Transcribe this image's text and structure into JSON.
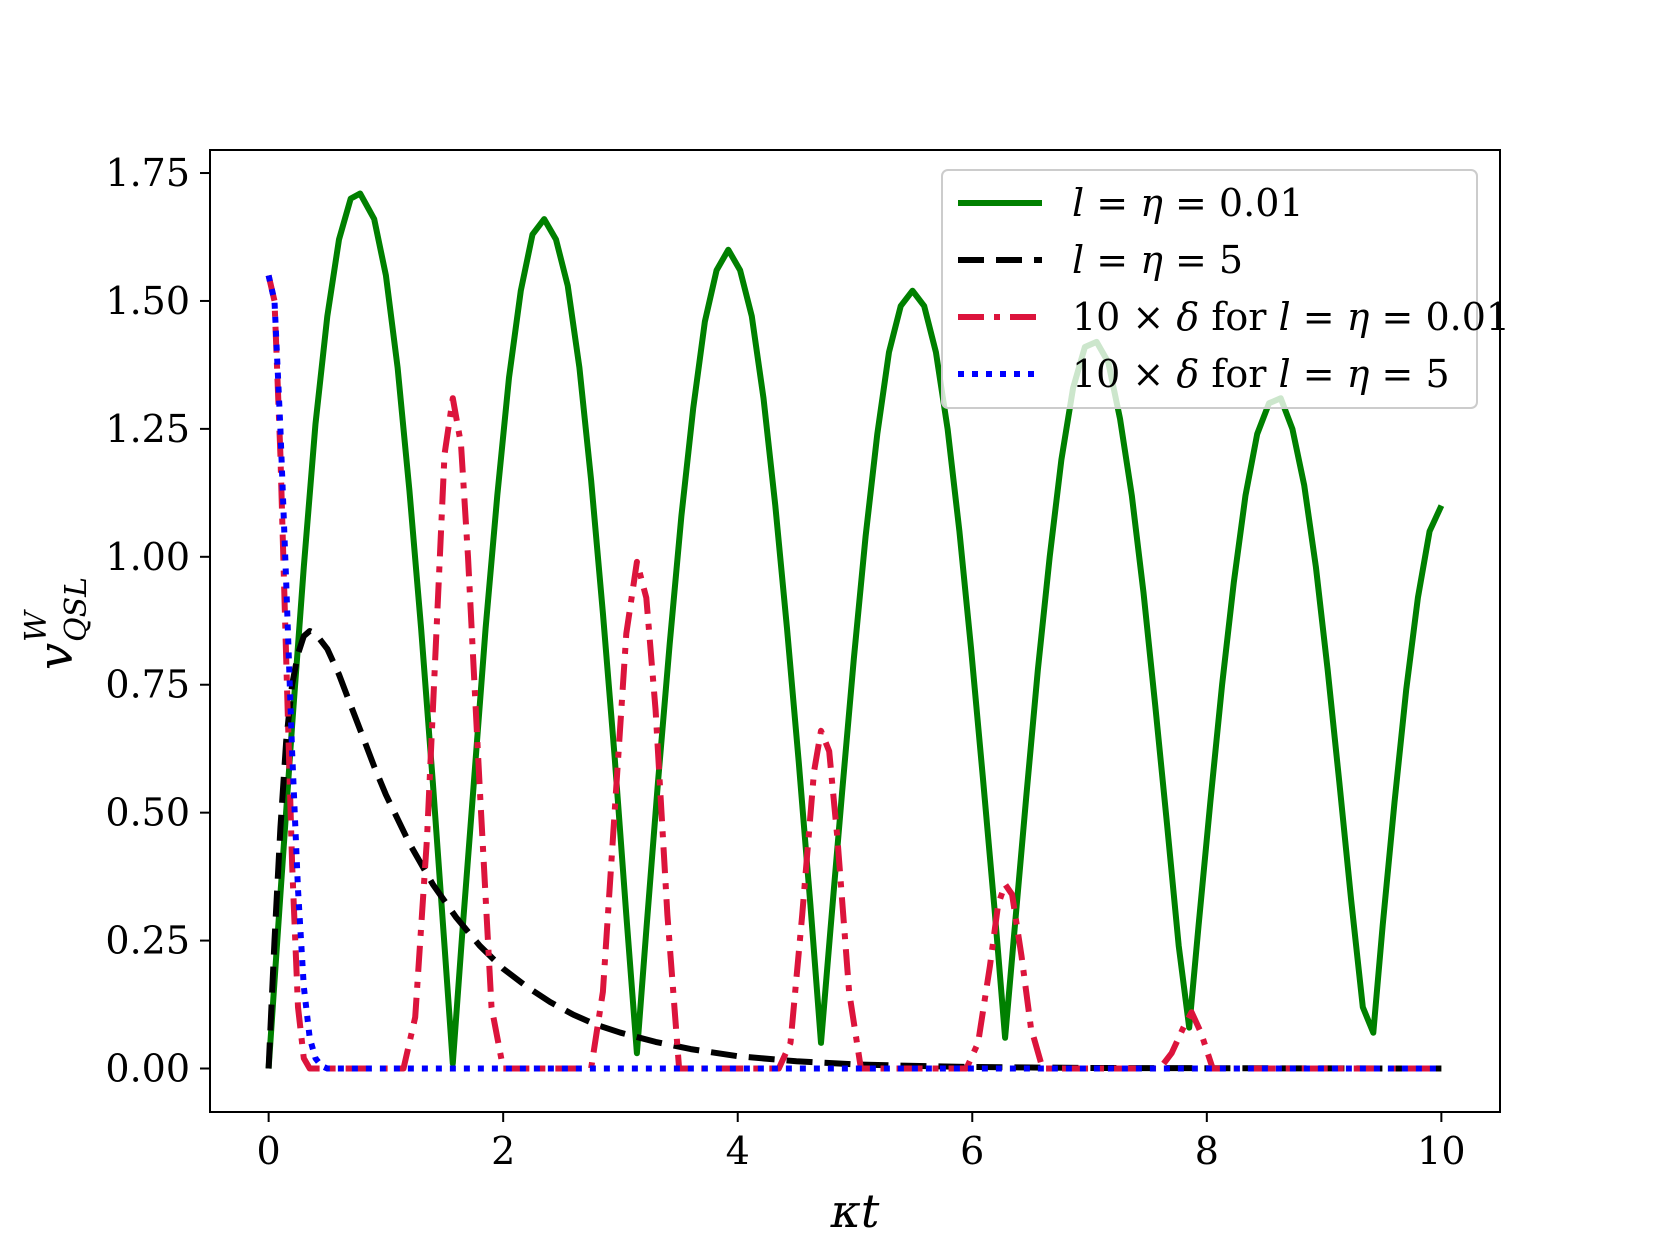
{
  "chart_data": {
    "type": "line",
    "title": "",
    "xlabel": "κt",
    "ylabel": {
      "base": "v",
      "sup": "W",
      "sub": "QSL"
    },
    "xlim": [
      -0.5,
      10.5
    ],
    "ylim": [
      -0.085,
      1.795
    ],
    "xticks": [
      0,
      2,
      4,
      6,
      8,
      10
    ],
    "xtick_labels": [
      "0",
      "2",
      "4",
      "6",
      "8",
      "10"
    ],
    "yticks": [
      0,
      0.25,
      0.5,
      0.75,
      1.0,
      1.25,
      1.5,
      1.75
    ],
    "ytick_labels": [
      "0.00",
      "0.25",
      "0.50",
      "0.75",
      "1.00",
      "1.25",
      "1.50",
      "1.75"
    ],
    "grid": false,
    "legend_position": "top-right",
    "series": [
      {
        "name": "l = η = 0.01",
        "legend_parts": [
          [
            "l",
            "it"
          ],
          [
            " = ",
            ""
          ],
          [
            "η",
            "it"
          ],
          [
            " = 0.01",
            ""
          ]
        ],
        "color": "#008000",
        "style": "solid",
        "x": [
          0,
          0.1,
          0.2,
          0.3,
          0.4,
          0.5,
          0.6,
          0.7,
          0.78,
          0.9,
          1.0,
          1.1,
          1.2,
          1.3,
          1.4,
          1.5,
          1.57,
          1.65,
          1.75,
          1.85,
          1.95,
          2.05,
          2.15,
          2.25,
          2.35,
          2.45,
          2.55,
          2.65,
          2.75,
          2.85,
          2.95,
          3.05,
          3.14,
          3.22,
          3.32,
          3.42,
          3.52,
          3.62,
          3.72,
          3.82,
          3.92,
          4.02,
          4.12,
          4.22,
          4.32,
          4.42,
          4.52,
          4.62,
          4.71,
          4.79,
          4.89,
          4.99,
          5.09,
          5.19,
          5.29,
          5.39,
          5.49,
          5.59,
          5.69,
          5.79,
          5.89,
          5.99,
          6.09,
          6.19,
          6.28,
          6.36,
          6.46,
          6.56,
          6.66,
          6.76,
          6.86,
          6.96,
          7.06,
          7.16,
          7.26,
          7.36,
          7.46,
          7.56,
          7.66,
          7.76,
          7.85,
          7.93,
          8.03,
          8.13,
          8.23,
          8.33,
          8.43,
          8.53,
          8.63,
          8.73,
          8.83,
          8.93,
          9.03,
          9.13,
          9.23,
          9.33,
          9.42,
          9.5,
          9.6,
          9.7,
          9.8,
          9.9,
          10.0
        ],
        "y": [
          0,
          0.34,
          0.67,
          0.98,
          1.26,
          1.47,
          1.62,
          1.7,
          1.71,
          1.66,
          1.55,
          1.37,
          1.13,
          0.86,
          0.56,
          0.24,
          0.01,
          0.26,
          0.56,
          0.86,
          1.12,
          1.35,
          1.52,
          1.63,
          1.66,
          1.62,
          1.53,
          1.37,
          1.15,
          0.89,
          0.61,
          0.3,
          0.03,
          0.27,
          0.56,
          0.83,
          1.08,
          1.29,
          1.46,
          1.56,
          1.6,
          1.56,
          1.47,
          1.31,
          1.1,
          0.86,
          0.6,
          0.32,
          0.05,
          0.27,
          0.54,
          0.8,
          1.04,
          1.24,
          1.4,
          1.49,
          1.52,
          1.49,
          1.4,
          1.25,
          1.05,
          0.82,
          0.57,
          0.31,
          0.06,
          0.27,
          0.53,
          0.78,
          1.0,
          1.19,
          1.33,
          1.41,
          1.42,
          1.38,
          1.27,
          1.12,
          0.93,
          0.71,
          0.48,
          0.24,
          0.08,
          0.28,
          0.52,
          0.75,
          0.95,
          1.12,
          1.24,
          1.3,
          1.31,
          1.25,
          1.14,
          0.98,
          0.78,
          0.56,
          0.33,
          0.12,
          0.07,
          0.28,
          0.52,
          0.74,
          0.92,
          1.05,
          1.1
        ]
      },
      {
        "name": "l = η = 5",
        "legend_parts": [
          [
            "l",
            "it"
          ],
          [
            " = ",
            ""
          ],
          [
            "η",
            "it"
          ],
          [
            " = 5",
            ""
          ]
        ],
        "color": "#000000",
        "style": "dashed",
        "x": [
          0,
          0.05,
          0.1,
          0.15,
          0.2,
          0.25,
          0.3,
          0.35,
          0.4,
          0.5,
          0.6,
          0.7,
          0.8,
          0.9,
          1.0,
          1.2,
          1.4,
          1.6,
          1.8,
          2.0,
          2.2,
          2.4,
          2.6,
          2.8,
          3.0,
          3.3,
          3.6,
          4.0,
          4.5,
          5.0,
          5.5,
          6.0,
          6.5,
          7.0,
          8.0,
          9.0,
          10.0
        ],
        "y": [
          0,
          0.25,
          0.47,
          0.64,
          0.75,
          0.81,
          0.845,
          0.855,
          0.85,
          0.82,
          0.77,
          0.71,
          0.65,
          0.59,
          0.535,
          0.44,
          0.36,
          0.295,
          0.24,
          0.195,
          0.16,
          0.13,
          0.105,
          0.085,
          0.07,
          0.052,
          0.038,
          0.024,
          0.014,
          0.008,
          0.005,
          0.003,
          0.002,
          0.001,
          0.0005,
          0.0002,
          0
        ]
      },
      {
        "name": "10 × δ for l = η = 0.01",
        "legend_parts": [
          [
            "10 × ",
            ""
          ],
          [
            "δ",
            "it"
          ],
          [
            " for ",
            ""
          ],
          [
            "l",
            "it"
          ],
          [
            " = ",
            ""
          ],
          [
            "η",
            "it"
          ],
          [
            " = 0.01",
            ""
          ]
        ],
        "color": "#dc143c",
        "style": "dashdot",
        "x": [
          0,
          0.05,
          0.1,
          0.15,
          0.2,
          0.25,
          0.3,
          0.35,
          0.4,
          1.15,
          1.25,
          1.35,
          1.45,
          1.5,
          1.57,
          1.64,
          1.7,
          1.8,
          1.9,
          2.0,
          2.75,
          2.85,
          2.95,
          3.05,
          3.14,
          3.22,
          3.3,
          3.4,
          3.5,
          4.35,
          4.45,
          4.55,
          4.65,
          4.71,
          4.78,
          4.85,
          4.95,
          5.05,
          5.95,
          6.05,
          6.15,
          6.22,
          6.28,
          6.34,
          6.42,
          6.5,
          6.6,
          7.6,
          7.7,
          7.8,
          7.87,
          7.95,
          8.05,
          10.0
        ],
        "y": [
          1.55,
          1.5,
          1.2,
          0.8,
          0.4,
          0.12,
          0.02,
          0,
          0,
          0,
          0.1,
          0.45,
          0.95,
          1.2,
          1.31,
          1.22,
          1.0,
          0.55,
          0.12,
          0,
          0,
          0.15,
          0.5,
          0.85,
          0.99,
          0.92,
          0.7,
          0.3,
          0,
          0,
          0.05,
          0.3,
          0.58,
          0.66,
          0.62,
          0.45,
          0.15,
          0,
          0,
          0.05,
          0.2,
          0.32,
          0.36,
          0.34,
          0.22,
          0.08,
          0,
          0,
          0.03,
          0.08,
          0.11,
          0.07,
          0,
          0
        ]
      },
      {
        "name": "10 × δ for l = η = 5",
        "legend_parts": [
          [
            "10 × ",
            ""
          ],
          [
            "δ",
            "it"
          ],
          [
            " for ",
            ""
          ],
          [
            "l",
            "it"
          ],
          [
            " = ",
            ""
          ],
          [
            "η",
            "it"
          ],
          [
            " = 5",
            ""
          ]
        ],
        "color": "#0000ff",
        "style": "dotted",
        "x": [
          0,
          0.05,
          0.1,
          0.15,
          0.2,
          0.25,
          0.3,
          0.35,
          0.4,
          0.45,
          0.5,
          0.6,
          10.0
        ],
        "y": [
          1.55,
          1.5,
          1.25,
          0.95,
          0.62,
          0.35,
          0.16,
          0.06,
          0.02,
          0.005,
          0,
          0,
          0
        ]
      }
    ]
  }
}
